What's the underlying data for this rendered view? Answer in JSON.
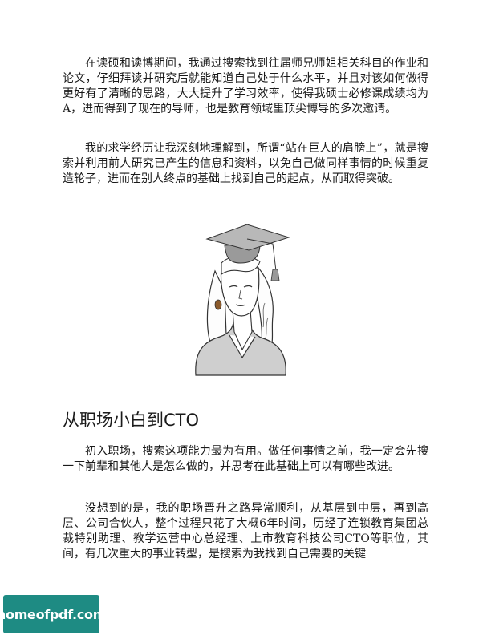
{
  "paragraphs": {
    "p1": "在读硕和读博期间，我通过搜索找到往届师兄师姐相关科目的作业和论文，仔细拜读并研究后就能知道自己处于什么水平，并且对该如何做得更好有了清晰的思路，大大提升了学习效率，使得我硕士必修课成绩均为A，进而得到了现在的导师，也是教育领域里顶尖博导的多次邀请。",
    "p2": "我的求学经历让我深刻地理解到，所谓“站在巨人的肩膀上”，就是搜索并利用前人研究已产生的信息和资料，以免自己做同样事情的时候重复造轮子，进而在别人终点的基础上找到自己的起点，从而取得突破。",
    "p3": "初入职场，搜索这项能力最为有用。做任何事情之前，我一定会先搜一下前辈和其他人是怎么做的，并思考在此基础上可以有哪些改进。",
    "p4": "没想到的是，我的职场晋升之路异常顺利，从基层到中层，再到高层、公司合伙人，整个过程只花了大概6年时间，历经了连锁教育集团总裁特别助理、教学运营中心总经理、上市教育科技公司CTO等职位，其间，有几次重大的事业转型，是搜索为我找到自己需要的关键"
  },
  "section_heading": "从职场小白到CTO",
  "watermark": "homeofpdf.com",
  "colors": {
    "watermark_bg": "#1e8b83",
    "text": "#1a1a1a"
  }
}
